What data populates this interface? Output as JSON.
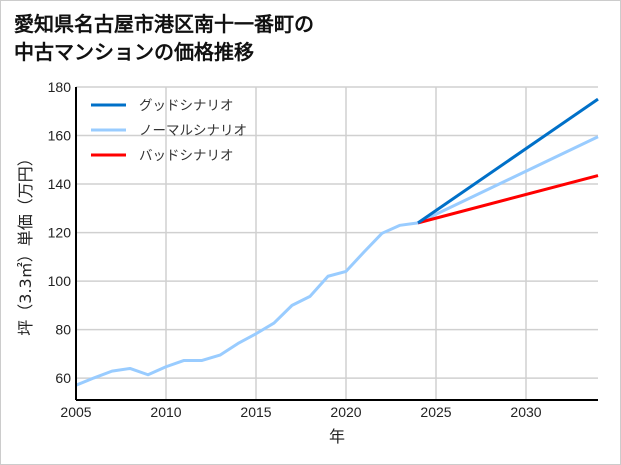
{
  "chart_data": {
    "type": "line",
    "title": "愛知県名古屋市港区南十一番町の\n中古マンションの価格推移",
    "title_lines": [
      "愛知県名古屋市港区南十一番町の",
      "中古マンションの価格推移"
    ],
    "xlabel": "年",
    "ylabel": "坪（3.3㎡）単価（万円）",
    "xlim": [
      2005,
      2034
    ],
    "ylim": [
      51,
      180
    ],
    "xticks": [
      2005,
      2010,
      2015,
      2020,
      2025,
      2030
    ],
    "yticks": [
      60,
      80,
      100,
      120,
      140,
      160,
      180
    ],
    "grid": true,
    "legend_position": "top-left",
    "series": [
      {
        "name": "グッドシナリオ",
        "color": "#0070c8",
        "x": [
          2024,
          2034
        ],
        "y": [
          124,
          175
        ]
      },
      {
        "name": "ノーマルシナリオ",
        "color": "#99ccff",
        "x": [
          2005,
          2006,
          2007,
          2008,
          2009,
          2010,
          2011,
          2012,
          2013,
          2014,
          2015,
          2016,
          2017,
          2018,
          2019,
          2020,
          2021,
          2022,
          2023,
          2024,
          2034
        ],
        "y": [
          57.1,
          60.1,
          62.9,
          64,
          61.4,
          64.7,
          67.3,
          67.3,
          69.5,
          74.3,
          78.3,
          82.7,
          90,
          93.7,
          102,
          104,
          112,
          119.7,
          123,
          124,
          159.5
        ]
      },
      {
        "name": "バッドシナリオ",
        "color": "#ff0000",
        "x": [
          2024,
          2034
        ],
        "y": [
          124,
          143.5
        ]
      }
    ]
  }
}
